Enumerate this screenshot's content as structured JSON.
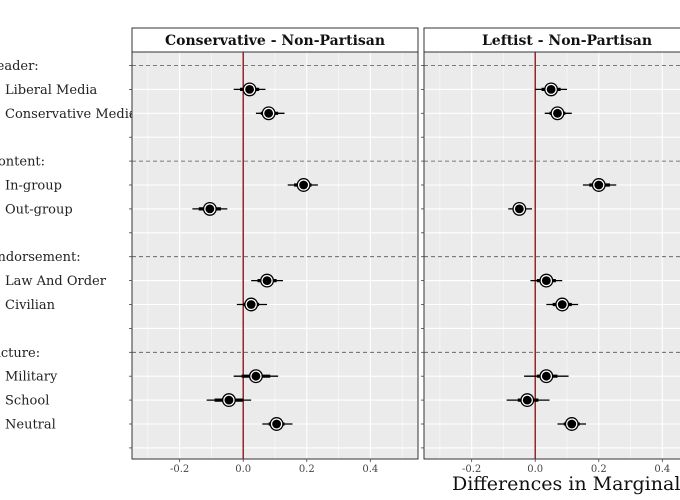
{
  "chart_data": {
    "type": "scatter",
    "xlabel": "Differences in Marginal Means",
    "xlim": [
      -0.35,
      0.55
    ],
    "xticks": [
      -0.2,
      0.0,
      0.2,
      0.4
    ],
    "xtick_labels": [
      "-0.2",
      "0.0",
      "0.2",
      "0.4"
    ],
    "reference_line": 0,
    "reference_line_color": "#8b1a1a",
    "panel_background": "#ebebeb",
    "grid": true,
    "row_labels": [
      {
        "label": "Leader:",
        "type": "header"
      },
      {
        "label": "Liberal Media",
        "type": "level"
      },
      {
        "label": "Conservative Media",
        "type": "level"
      },
      {
        "label": "",
        "type": "spacer"
      },
      {
        "label": "Content:",
        "type": "header"
      },
      {
        "label": "In-group",
        "type": "level"
      },
      {
        "label": "Out-group",
        "type": "level"
      },
      {
        "label": "",
        "type": "spacer"
      },
      {
        "label": "Endorsement:",
        "type": "header"
      },
      {
        "label": "Law And Order",
        "type": "level"
      },
      {
        "label": "Civilian",
        "type": "level"
      },
      {
        "label": "",
        "type": "spacer"
      },
      {
        "label": "Picture:",
        "type": "header"
      },
      {
        "label": "Military",
        "type": "level"
      },
      {
        "label": "School",
        "type": "level"
      },
      {
        "label": "Neutral",
        "type": "level"
      },
      {
        "label": "",
        "type": "spacer"
      }
    ],
    "panels": [
      {
        "title": "Conservative - Non-Partisan",
        "points": [
          {
            "level": "Liberal Media",
            "estimate": 0.02,
            "ci95": [
              -0.03,
              0.07
            ],
            "ci90": [
              -0.01,
              0.05
            ]
          },
          {
            "level": "Conservative Media",
            "estimate": 0.08,
            "ci95": [
              0.04,
              0.13
            ],
            "ci90": [
              0.055,
              0.11
            ]
          },
          {
            "level": "In-group",
            "estimate": 0.19,
            "ci95": [
              0.14,
              0.235
            ],
            "ci90": [
              0.16,
              0.215
            ]
          },
          {
            "level": "Out-group",
            "estimate": -0.105,
            "ci95": [
              -0.16,
              -0.05
            ],
            "ci90": [
              -0.14,
              -0.07
            ]
          },
          {
            "level": "Law And Order",
            "estimate": 0.075,
            "ci95": [
              0.025,
              0.125
            ],
            "ci90": [
              0.045,
              0.105
            ]
          },
          {
            "level": "Civilian",
            "estimate": 0.025,
            "ci95": [
              -0.02,
              0.075
            ],
            "ci90": [
              0.0,
              0.05
            ]
          },
          {
            "level": "Military",
            "estimate": 0.04,
            "ci95": [
              -0.03,
              0.11
            ],
            "ci90": [
              -0.005,
              0.085
            ]
          },
          {
            "level": "School",
            "estimate": -0.045,
            "ci95": [
              -0.115,
              0.025
            ],
            "ci90": [
              -0.09,
              0.0
            ]
          },
          {
            "level": "Neutral",
            "estimate": 0.105,
            "ci95": [
              0.06,
              0.155
            ],
            "ci90": [
              0.08,
              0.13
            ]
          }
        ]
      },
      {
        "title": "Leftist - Non-Partisan",
        "points": [
          {
            "level": "Liberal Media",
            "estimate": 0.05,
            "ci95": [
              0.0,
              0.1
            ],
            "ci90": [
              0.02,
              0.08
            ]
          },
          {
            "level": "Conservative Media",
            "estimate": 0.07,
            "ci95": [
              0.03,
              0.115
            ],
            "ci90": [
              0.045,
              0.095
            ]
          },
          {
            "level": "In-group",
            "estimate": 0.2,
            "ci95": [
              0.15,
              0.255
            ],
            "ci90": [
              0.17,
              0.235
            ]
          },
          {
            "level": "Out-group",
            "estimate": -0.05,
            "ci95": [
              -0.085,
              -0.01
            ],
            "ci90": [
              -0.07,
              -0.03
            ]
          },
          {
            "level": "Law And Order",
            "estimate": 0.035,
            "ci95": [
              -0.015,
              0.085
            ],
            "ci90": [
              0.005,
              0.065
            ]
          },
          {
            "level": "Civilian",
            "estimate": 0.085,
            "ci95": [
              0.035,
              0.135
            ],
            "ci90": [
              0.055,
              0.115
            ]
          },
          {
            "level": "Military",
            "estimate": 0.035,
            "ci95": [
              -0.035,
              0.105
            ],
            "ci90": [
              0.005,
              0.07
            ]
          },
          {
            "level": "School",
            "estimate": -0.025,
            "ci95": [
              -0.09,
              0.045
            ],
            "ci90": [
              -0.055,
              0.01
            ]
          },
          {
            "level": "Neutral",
            "estimate": 0.115,
            "ci95": [
              0.07,
              0.16
            ],
            "ci90": [
              0.09,
              0.14
            ]
          }
        ]
      }
    ]
  }
}
